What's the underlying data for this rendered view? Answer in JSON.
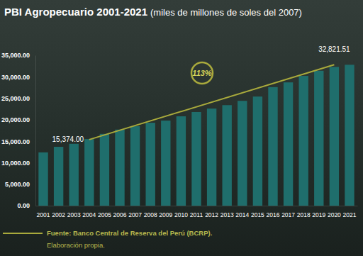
{
  "chart_data": {
    "type": "bar",
    "title": "PBI Agropecuario 2001-2021",
    "subtitle": "(miles de millones de soles del 2007)",
    "categories": [
      "2001",
      "2002",
      "2003",
      "2004",
      "2005",
      "2006",
      "2007",
      "2008",
      "2009",
      "2010",
      "2011",
      "2012",
      "2013",
      "2014",
      "2015",
      "2016",
      "2017",
      "2018",
      "2019",
      "2020",
      "2021"
    ],
    "values": [
      12400,
      13700,
      14400,
      15500,
      16700,
      17700,
      18500,
      19300,
      19800,
      20800,
      21800,
      22600,
      23400,
      24400,
      25400,
      27600,
      28700,
      30200,
      31400,
      32300,
      32800
    ],
    "color": "#1f6e6c",
    "ylim": [
      0,
      35000
    ],
    "yticks": [
      {
        "value": 0,
        "label": "0.00"
      },
      {
        "value": 5000,
        "label": "5,000.00"
      },
      {
        "value": 10000,
        "label": "10,000.00"
      },
      {
        "value": 15000,
        "label": "15,000.00"
      },
      {
        "value": 20000,
        "label": "20,000.00"
      },
      {
        "value": 25000,
        "label": "25,000.00"
      },
      {
        "value": 30000,
        "label": "30,000.00"
      },
      {
        "value": 35000,
        "label": "35,000.00"
      }
    ],
    "grid": false,
    "trend": {
      "type": "line",
      "color": "#a9aa3c",
      "values": [
        null,
        null,
        null,
        15374,
        null,
        null,
        null,
        null,
        null,
        null,
        null,
        null,
        null,
        null,
        null,
        null,
        null,
        null,
        null,
        32821.51,
        null
      ],
      "value_labels": [
        null,
        null,
        null,
        "15,374.00",
        null,
        null,
        null,
        null,
        null,
        null,
        null,
        null,
        null,
        null,
        null,
        null,
        null,
        null,
        null,
        "32,821.51",
        null
      ]
    },
    "annotation": "113%",
    "footer": [
      "Fuente: Banco Central de Reserva del Perú (BCRP).",
      "Elaboración propia."
    ]
  }
}
